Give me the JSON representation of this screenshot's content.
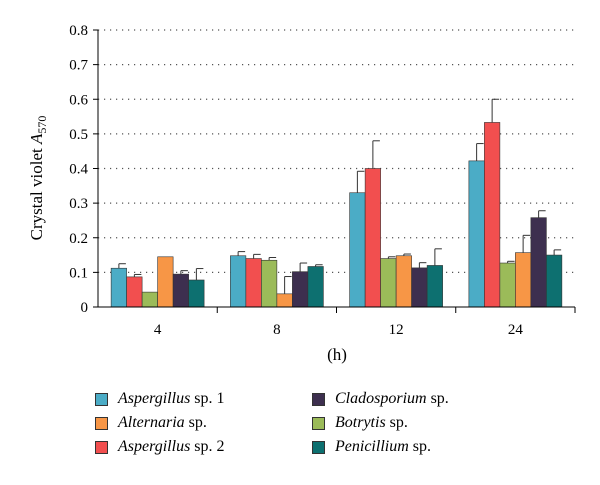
{
  "chart_data": {
    "type": "bar",
    "title": "",
    "ylabel_main": "Crystal violet ",
    "ylabel_italic": "A",
    "ylabel_sub": "570",
    "xlabel": "(h)",
    "ylim": [
      0,
      0.8
    ],
    "yticks": [
      "0",
      "0.1",
      "0.2",
      "0.3",
      "0.4",
      "0.5",
      "0.6",
      "0.7",
      "0.8"
    ],
    "grid": "horizontal dotted",
    "categories": [
      "4",
      "8",
      "12",
      "24"
    ],
    "series": [
      {
        "name": "Aspergillus sp. 1",
        "name_italic": "Aspergillus",
        "name_rest": " sp. 1",
        "color": "#4bacc6",
        "values": [
          0.112,
          0.148,
          0.33,
          0.422
        ],
        "errors": [
          0.013,
          0.012,
          0.062,
          0.05
        ]
      },
      {
        "name": "Aspergillus sp. 2",
        "name_italic": "Aspergillus",
        "name_rest": " sp. 2",
        "color": "#f24f4f",
        "values": [
          0.087,
          0.14,
          0.4,
          0.533
        ],
        "errors": [
          0.007,
          0.012,
          0.08,
          0.067
        ]
      },
      {
        "name": "Botrytis sp.",
        "name_italic": "Botrytis",
        "name_rest": " sp.",
        "color": "#9bbb59",
        "values": [
          0.043,
          0.135,
          0.14,
          0.127
        ],
        "errors": [
          0.0,
          0.008,
          0.005,
          0.005
        ]
      },
      {
        "name": "Alternaria sp.",
        "name_italic": "Alternaria",
        "name_rest": " sp.",
        "color": "#f79646",
        "values": [
          0.145,
          0.038,
          0.148,
          0.157
        ],
        "errors": [
          0.0,
          0.05,
          0.005,
          0.05
        ]
      },
      {
        "name": "Cladosporium sp.",
        "name_italic": "Cladosporium",
        "name_rest": " sp.",
        "color": "#3d2f4f",
        "values": [
          0.095,
          0.102,
          0.113,
          0.258
        ],
        "errors": [
          0.01,
          0.025,
          0.015,
          0.02
        ]
      },
      {
        "name": "Penicillium sp.",
        "name_italic": "Penicillium",
        "name_rest": " sp.",
        "color": "#0d7070",
        "values": [
          0.078,
          0.117,
          0.12,
          0.15
        ],
        "errors": [
          0.033,
          0.005,
          0.048,
          0.015
        ]
      }
    ],
    "legend_order": [
      0,
      4,
      3,
      2,
      1,
      5
    ],
    "legend_placement": "bottom, two columns"
  }
}
